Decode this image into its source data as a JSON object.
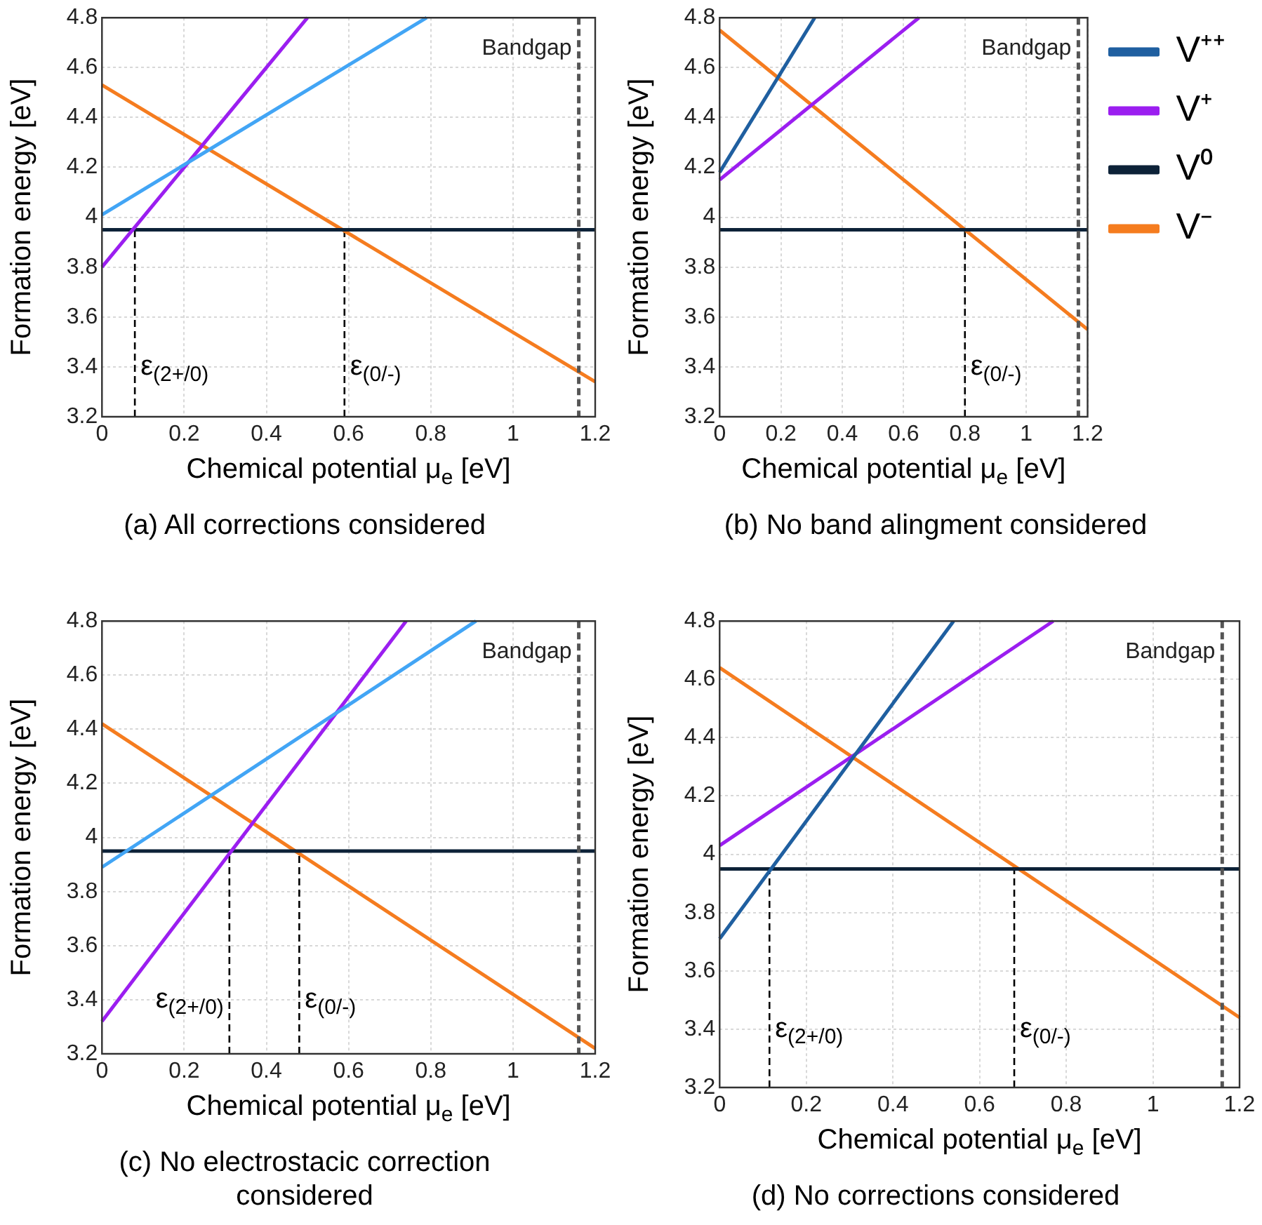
{
  "chart_data": [
    {
      "type": "line",
      "title": "(a) All corrections considered",
      "xlabel": "Chemical potential μ$_{e}$ [eV]",
      "ylabel": "Formation energy [eV]",
      "xlim": [
        0,
        1.2
      ],
      "ylim": [
        3.2,
        4.8
      ],
      "xticks": [
        0,
        0.2,
        0.4,
        0.6,
        0.8,
        1,
        1.2
      ],
      "yticks": [
        3.2,
        3.4,
        3.6,
        3.8,
        4,
        4.2,
        4.4,
        4.6,
        4.8
      ],
      "grid": true,
      "marker": "none",
      "series": [
        {
          "color": "#42a5f5",
          "x": [
            0,
            0.79
          ],
          "values": [
            4.01,
            4.8
          ]
        },
        {
          "color": "#9b1ef0",
          "x": [
            0,
            0.5
          ],
          "values": [
            3.8,
            4.8
          ]
        },
        {
          "color": "#0d2238",
          "x": [
            0,
            1.2
          ],
          "values": [
            3.95,
            3.95
          ]
        },
        {
          "color": "#f57c1f",
          "x": [
            0,
            1.2
          ],
          "values": [
            4.53,
            3.34
          ]
        },
        {
          "color": "#000000",
          "line_style": "dashed",
          "x": [
            0.08,
            0.08
          ],
          "values": [
            3.2,
            3.95
          ]
        },
        {
          "color": "#000000",
          "line_style": "dashed",
          "x": [
            0.59,
            0.59
          ],
          "values": [
            3.2,
            3.95
          ]
        }
      ],
      "ref_lines": [
        {
          "axis": "x",
          "value": 1.16,
          "label": "Bandgap",
          "line_style": "dashed",
          "color": "#555555"
        }
      ],
      "annotations": [
        {
          "text": "ε$_{(2+/0)}$",
          "x": 0.08,
          "y": 3.4
        },
        {
          "text": "ε$_{(0/-)}$",
          "x": 0.59,
          "y": 3.4
        }
      ]
    },
    {
      "type": "line",
      "title": "(b) No band alingment considered",
      "xlabel": "Chemical potential μ$_{e}$ [eV]",
      "ylabel": "Formation energy [eV]",
      "xlim": [
        0,
        1.2
      ],
      "ylim": [
        3.2,
        4.8
      ],
      "xticks": [
        0,
        0.2,
        0.4,
        0.6,
        0.8,
        1,
        1.2
      ],
      "yticks": [
        3.2,
        3.4,
        3.6,
        3.8,
        4,
        4.2,
        4.4,
        4.6,
        4.8
      ],
      "grid": true,
      "marker": "none",
      "legend": "right",
      "series": [
        {
          "name": "V⁺⁺",
          "color": "#1f5fa0",
          "x": [
            0,
            0.31
          ],
          "values": [
            4.18,
            4.8
          ]
        },
        {
          "name": "V⁺",
          "color": "#9b1ef0",
          "x": [
            0,
            0.65
          ],
          "values": [
            4.15,
            4.8
          ]
        },
        {
          "name": "V⁰",
          "color": "#0d2238",
          "x": [
            0,
            1.2
          ],
          "values": [
            3.95,
            3.95
          ]
        },
        {
          "name": "V⁻",
          "color": "#f57c1f",
          "x": [
            0,
            1.2
          ],
          "values": [
            4.75,
            3.55
          ]
        },
        {
          "color": "#000000",
          "line_style": "dashed",
          "x": [
            0.8,
            0.8
          ],
          "values": [
            3.2,
            3.95
          ]
        }
      ],
      "ref_lines": [
        {
          "axis": "x",
          "value": 1.17,
          "label": "Bandgap",
          "line_style": "dashed",
          "color": "#555555"
        }
      ],
      "annotations": [
        {
          "text": "ε$_{(0/-)}$",
          "x": 0.8,
          "y": 3.4
        }
      ]
    },
    {
      "type": "line",
      "title": "(c) No electrostacic correction considered",
      "xlabel": "Chemical potential μ$_{e}$ [eV]",
      "ylabel": "Formation energy [eV]",
      "xlim": [
        0,
        1.2
      ],
      "ylim": [
        3.2,
        4.8
      ],
      "xticks": [
        0,
        0.2,
        0.4,
        0.6,
        0.8,
        1,
        1.2
      ],
      "yticks": [
        3.2,
        3.4,
        3.6,
        3.8,
        4,
        4.2,
        4.4,
        4.6,
        4.8
      ],
      "grid": true,
      "marker": "none",
      "series": [
        {
          "color": "#42a5f5",
          "x": [
            0,
            0.91
          ],
          "values": [
            3.89,
            4.8
          ]
        },
        {
          "color": "#9b1ef0",
          "x": [
            0,
            0.74
          ],
          "values": [
            3.32,
            4.8
          ]
        },
        {
          "color": "#0d2238",
          "x": [
            0,
            1.2
          ],
          "values": [
            3.95,
            3.95
          ]
        },
        {
          "color": "#f57c1f",
          "x": [
            0,
            1.2
          ],
          "values": [
            4.42,
            3.22
          ]
        },
        {
          "color": "#000000",
          "line_style": "dashed",
          "x": [
            0.31,
            0.31
          ],
          "values": [
            3.2,
            3.95
          ]
        },
        {
          "color": "#000000",
          "line_style": "dashed",
          "x": [
            0.48,
            0.48
          ],
          "values": [
            3.2,
            3.95
          ]
        }
      ],
      "ref_lines": [
        {
          "axis": "x",
          "value": 1.16,
          "label": "Bandgap",
          "line_style": "dashed",
          "color": "#555555"
        }
      ],
      "annotations": [
        {
          "text": "ε$_{(2+/0)}$",
          "x": 0.31,
          "y": 3.4
        },
        {
          "text": "ε$_{(0/-)}$",
          "x": 0.48,
          "y": 3.4
        }
      ]
    },
    {
      "type": "line",
      "title": "(d) No corrections considered",
      "xlabel": "Chemical potential μ$_{e}$ [eV]",
      "ylabel": "Formation energy [eV]",
      "xlim": [
        0,
        1.2
      ],
      "ylim": [
        3.2,
        4.8
      ],
      "xticks": [
        0,
        0.2,
        0.4,
        0.6,
        0.8,
        1,
        1.2
      ],
      "yticks": [
        3.2,
        3.4,
        3.6,
        3.8,
        4,
        4.2,
        4.4,
        4.6,
        4.8
      ],
      "grid": true,
      "marker": "none",
      "series": [
        {
          "color": "#1f5fa0",
          "x": [
            0,
            0.54
          ],
          "values": [
            3.71,
            4.8
          ]
        },
        {
          "color": "#9b1ef0",
          "x": [
            0,
            0.77
          ],
          "values": [
            4.03,
            4.8
          ]
        },
        {
          "color": "#0d2238",
          "x": [
            0,
            1.2
          ],
          "values": [
            3.95,
            3.95
          ]
        },
        {
          "color": "#f57c1f",
          "x": [
            0,
            1.2
          ],
          "values": [
            4.64,
            3.44
          ]
        },
        {
          "color": "#000000",
          "line_style": "dashed",
          "x": [
            0.115,
            0.115
          ],
          "values": [
            3.2,
            3.95
          ]
        },
        {
          "color": "#000000",
          "line_style": "dashed",
          "x": [
            0.68,
            0.68
          ],
          "values": [
            3.2,
            3.95
          ]
        }
      ],
      "ref_lines": [
        {
          "axis": "x",
          "value": 1.16,
          "label": "Bandgap",
          "line_style": "dashed",
          "color": "#555555"
        }
      ],
      "annotations": [
        {
          "text": "ε$_{(2+/0)}$",
          "x": 0.115,
          "y": 3.4
        },
        {
          "text": "ε$_{(0/-)}$",
          "x": 0.68,
          "y": 3.4
        }
      ]
    }
  ]
}
